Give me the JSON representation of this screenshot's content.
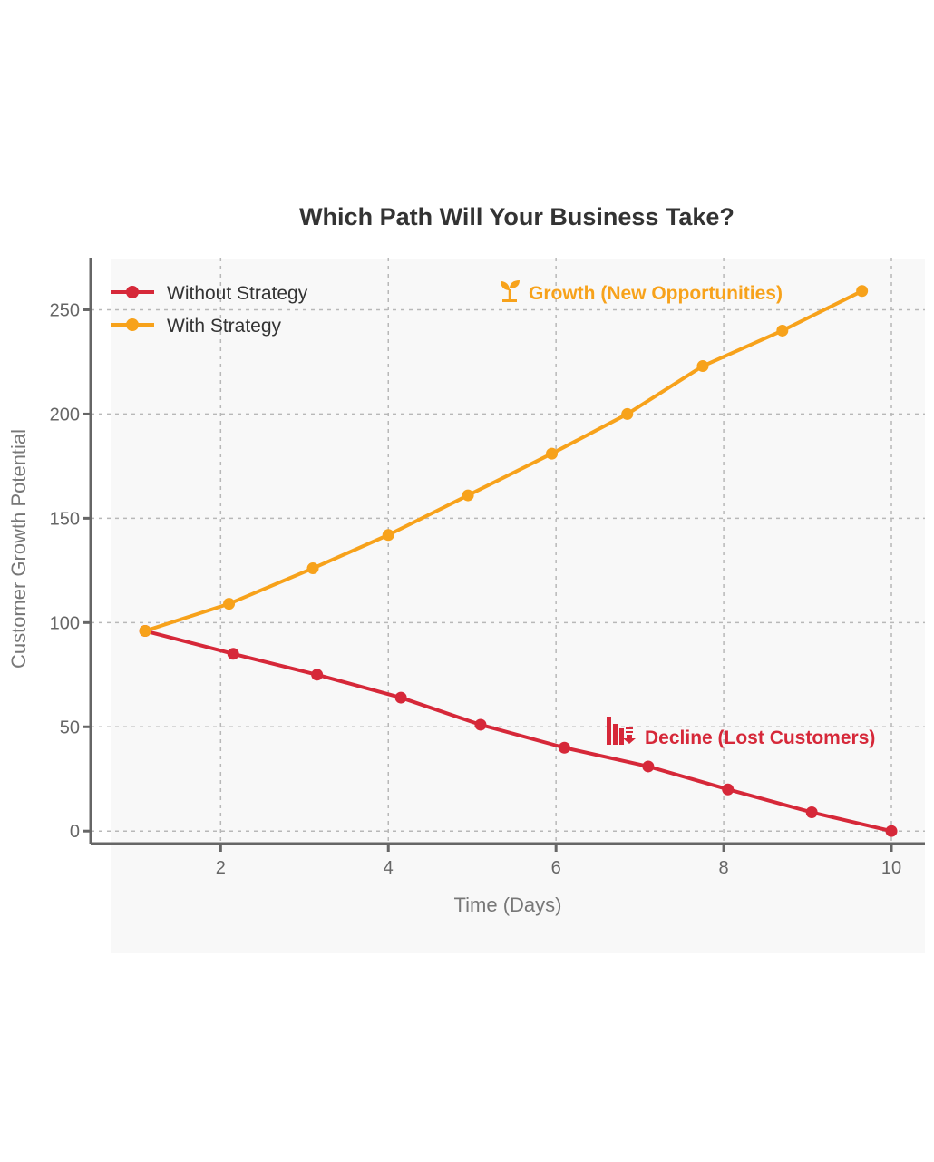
{
  "chart_data": {
    "type": "line",
    "title": "Which Path Will Your Business Take?",
    "xlabel": "Time (Days)",
    "ylabel": "Customer Growth Potential",
    "xlim": [
      0.45,
      10.4
    ],
    "ylim": [
      -6,
      275
    ],
    "xticks": [
      2,
      4,
      6,
      8,
      10
    ],
    "yticks": [
      0,
      50,
      100,
      150,
      200,
      250
    ],
    "grid": true,
    "legend_placement": "top-left",
    "series": [
      {
        "name": "Without Strategy",
        "color": "#d62839",
        "x": [
          1.1,
          2.15,
          3.15,
          4.15,
          5.1,
          6.1,
          7.1,
          8.05,
          9.05,
          10.0
        ],
        "y": [
          96,
          85,
          75,
          64,
          51,
          40,
          31,
          20,
          9,
          0
        ]
      },
      {
        "name": "With Strategy",
        "color": "#f7a21b",
        "x": [
          1.1,
          2.1,
          3.1,
          4.0,
          4.95,
          5.95,
          6.85,
          7.75,
          8.7,
          9.65
        ],
        "y": [
          96,
          109,
          126,
          142,
          161,
          181,
          200,
          223,
          240,
          259
        ]
      }
    ],
    "annotations": [
      {
        "text": "Growth (New Opportunities)",
        "icon": "seedling-icon",
        "color": "#f7a21b",
        "x": 6.4,
        "y": 257
      },
      {
        "text": "Decline (Lost Customers)",
        "icon": "chart-decreasing-icon",
        "color": "#d62839",
        "x": 7.5,
        "y": 44
      }
    ]
  }
}
